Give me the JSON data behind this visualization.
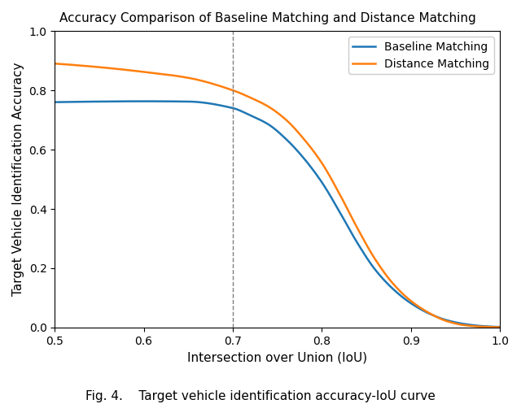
{
  "title": "Accuracy Comparison of Baseline Matching and Distance Matching",
  "xlabel": "Intersection over Union (IoU)",
  "ylabel": "Target Vehicle Identification Accuracy",
  "fig_caption": "Fig. 4.    Target vehicle identification accuracy-IoU curve",
  "xlim": [
    0.5,
    1.0
  ],
  "ylim": [
    0.0,
    1.0
  ],
  "xticks": [
    0.5,
    0.6,
    0.7,
    0.8,
    0.9,
    1.0
  ],
  "yticks": [
    0.0,
    0.2,
    0.4,
    0.6,
    0.8,
    1.0
  ],
  "vline_x": 0.7,
  "baseline_color": "#1f77b4",
  "distance_color": "#ff7f0e",
  "baseline_label": "Baseline Matching",
  "distance_label": "Distance Matching",
  "background_color": "#ffffff",
  "figsize": [
    6.4,
    4.97
  ],
  "dpi": 100,
  "baseline_points_x": [
    0.5,
    0.55,
    0.6,
    0.65,
    0.7,
    0.72,
    0.74,
    0.76,
    0.78,
    0.8,
    0.82,
    0.84,
    0.86,
    0.88,
    0.9,
    0.92,
    0.94,
    0.96,
    0.98,
    1.0
  ],
  "baseline_points_y": [
    0.76,
    0.762,
    0.763,
    0.762,
    0.74,
    0.715,
    0.685,
    0.635,
    0.57,
    0.49,
    0.39,
    0.285,
    0.195,
    0.13,
    0.082,
    0.048,
    0.025,
    0.012,
    0.005,
    0.002
  ],
  "distance_points_x": [
    0.5,
    0.55,
    0.6,
    0.65,
    0.7,
    0.72,
    0.74,
    0.76,
    0.78,
    0.8,
    0.82,
    0.84,
    0.86,
    0.88,
    0.9,
    0.92,
    0.94,
    0.96,
    0.98,
    1.0
  ],
  "distance_points_y": [
    0.89,
    0.878,
    0.862,
    0.842,
    0.8,
    0.775,
    0.745,
    0.7,
    0.635,
    0.555,
    0.45,
    0.335,
    0.23,
    0.148,
    0.09,
    0.05,
    0.022,
    0.008,
    0.003,
    0.001
  ]
}
